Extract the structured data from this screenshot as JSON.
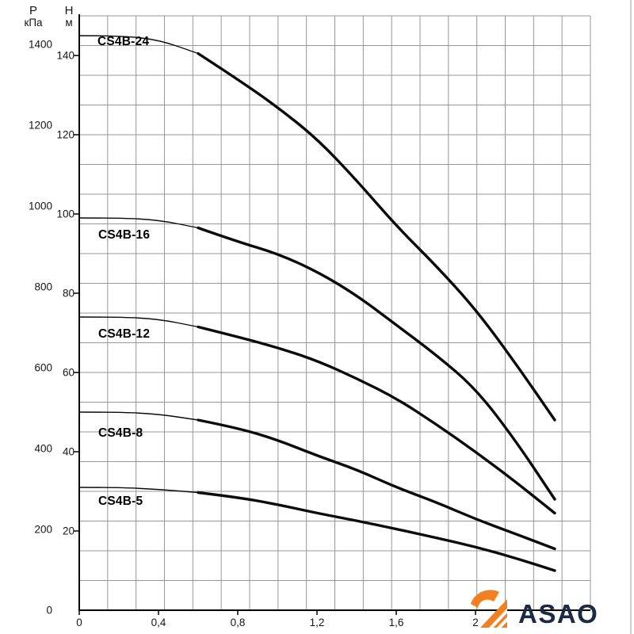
{
  "logo": {
    "text": "ASAO",
    "accent_color": "#f28020",
    "text_color": "#1b2a45"
  },
  "chart_data": {
    "type": "line",
    "title": "",
    "p_axis": {
      "letter": "P",
      "unit": "кПа",
      "ticks": [
        0,
        200,
        400,
        600,
        800,
        1000,
        1200,
        1400
      ]
    },
    "h_axis": {
      "letter": "H",
      "unit": "м",
      "ticks": [
        20,
        40,
        60,
        80,
        100,
        120,
        140
      ]
    },
    "x_axis": {
      "tick_labels": [
        "0",
        "0,4",
        "0,8",
        "1,2",
        "1,6",
        "2"
      ],
      "tick_values": [
        0,
        0.4,
        0.8,
        1.2,
        1.6,
        2
      ],
      "max": 2.58
    },
    "hlim": [
      0,
      150
    ],
    "grid": {
      "cols": 18,
      "rows": 20,
      "color": "#979797"
    },
    "curve_color": "#0b0b0b",
    "series": [
      {
        "name": "CS4B-24",
        "thick_from": 0.6,
        "points": [
          [
            0,
            145
          ],
          [
            0.2,
            145
          ],
          [
            0.4,
            144
          ],
          [
            0.6,
            140.5
          ],
          [
            0.8,
            134
          ],
          [
            1.0,
            127
          ],
          [
            1.2,
            119
          ],
          [
            1.4,
            108.5
          ],
          [
            1.6,
            97
          ],
          [
            1.8,
            87
          ],
          [
            2.0,
            76
          ],
          [
            2.2,
            62.5
          ],
          [
            2.4,
            48
          ]
        ]
      },
      {
        "name": "CS4B-16",
        "thick_from": 0.6,
        "points": [
          [
            0,
            99
          ],
          [
            0.2,
            99
          ],
          [
            0.4,
            98.5
          ],
          [
            0.6,
            96.5
          ],
          [
            0.8,
            93
          ],
          [
            1.0,
            90
          ],
          [
            1.2,
            85.5
          ],
          [
            1.4,
            79.5
          ],
          [
            1.6,
            72
          ],
          [
            1.8,
            64.5
          ],
          [
            2.0,
            56
          ],
          [
            2.2,
            43
          ],
          [
            2.4,
            28
          ]
        ]
      },
      {
        "name": "CS4B-12",
        "thick_from": 0.6,
        "points": [
          [
            0,
            74
          ],
          [
            0.2,
            74
          ],
          [
            0.4,
            73.5
          ],
          [
            0.6,
            71.5
          ],
          [
            0.8,
            69
          ],
          [
            1.0,
            66.3
          ],
          [
            1.2,
            63
          ],
          [
            1.4,
            58.5
          ],
          [
            1.6,
            53.5
          ],
          [
            1.8,
            47
          ],
          [
            2.0,
            40
          ],
          [
            2.2,
            32.5
          ],
          [
            2.4,
            24.5
          ]
        ]
      },
      {
        "name": "CS4B-8",
        "thick_from": 0.6,
        "points": [
          [
            0,
            50
          ],
          [
            0.2,
            50
          ],
          [
            0.4,
            49.5
          ],
          [
            0.6,
            48
          ],
          [
            0.8,
            46
          ],
          [
            1.0,
            43
          ],
          [
            1.2,
            39
          ],
          [
            1.4,
            35.5
          ],
          [
            1.6,
            31
          ],
          [
            1.8,
            27.3
          ],
          [
            2.0,
            23
          ],
          [
            2.2,
            19.3
          ],
          [
            2.4,
            15.5
          ]
        ]
      },
      {
        "name": "CS4B-5",
        "thick_from": 0.6,
        "points": [
          [
            0,
            31
          ],
          [
            0.2,
            31
          ],
          [
            0.4,
            30.5
          ],
          [
            0.6,
            29.7
          ],
          [
            0.8,
            28.5
          ],
          [
            1.0,
            26.7
          ],
          [
            1.2,
            24.5
          ],
          [
            1.4,
            22.6
          ],
          [
            1.6,
            20.5
          ],
          [
            1.8,
            18.3
          ],
          [
            2.0,
            16
          ],
          [
            2.2,
            13.2
          ],
          [
            2.4,
            10
          ]
        ]
      }
    ]
  }
}
